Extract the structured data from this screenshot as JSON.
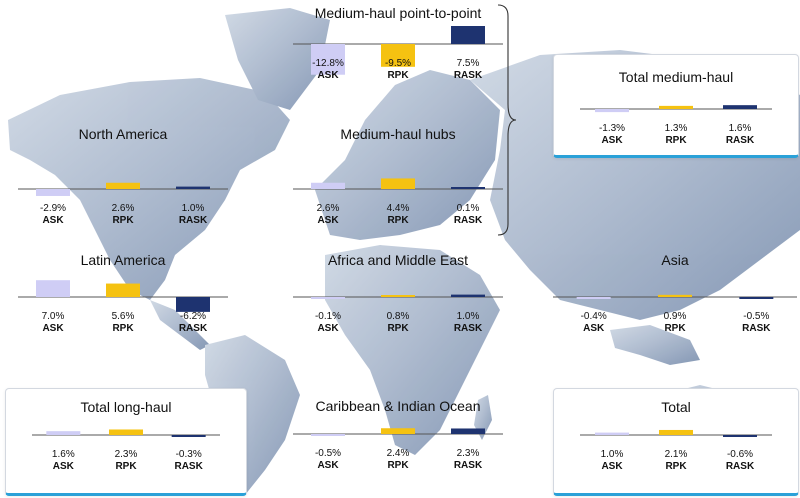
{
  "colors": {
    "ask": "#cfcdf5",
    "rpk": "#f5c211",
    "rask": "#1e3370",
    "axis": "#555555",
    "accent": "#2aa1d8",
    "map_light": "#c3cedd",
    "map_dark": "#8598b5"
  },
  "chart_data": [
    {
      "id": "medium-haul-p2p",
      "type": "bar",
      "title": "Medium-haul point-to-point",
      "categories": [
        "ASK",
        "RPK",
        "RASK"
      ],
      "values": [
        -12.8,
        -9.5,
        7.5
      ],
      "labels": [
        "-12.8%",
        "-9.5%",
        "7.5%"
      ],
      "unit": "%",
      "boxed": false
    },
    {
      "id": "total-medium-haul",
      "type": "bar",
      "title": "Total medium-haul",
      "categories": [
        "ASK",
        "RPK",
        "RASK"
      ],
      "values": [
        -1.3,
        1.3,
        1.6
      ],
      "labels": [
        "-1.3%",
        "1.3%",
        "1.6%"
      ],
      "unit": "%",
      "boxed": true
    },
    {
      "id": "north-america",
      "type": "bar",
      "title": "North America",
      "categories": [
        "ASK",
        "RPK",
        "RASK"
      ],
      "values": [
        -2.9,
        2.6,
        1.0
      ],
      "labels": [
        "-2.9%",
        "2.6%",
        "1.0%"
      ],
      "unit": "%",
      "boxed": false
    },
    {
      "id": "medium-haul-hubs",
      "type": "bar",
      "title": "Medium-haul hubs",
      "categories": [
        "ASK",
        "RPK",
        "RASK"
      ],
      "values": [
        2.6,
        4.4,
        0.1
      ],
      "labels": [
        "2.6%",
        "4.4%",
        "0.1%"
      ],
      "unit": "%",
      "boxed": false
    },
    {
      "id": "latin-america",
      "type": "bar",
      "title": "Latin America",
      "categories": [
        "ASK",
        "RPK",
        "RASK"
      ],
      "values": [
        7.0,
        5.6,
        -6.2
      ],
      "labels": [
        "7.0%",
        "5.6%",
        "-6.2%"
      ],
      "unit": "%",
      "boxed": false
    },
    {
      "id": "africa-middle-east",
      "type": "bar",
      "title": "Africa and Middle East",
      "categories": [
        "ASK",
        "RPK",
        "RASK"
      ],
      "values": [
        -0.1,
        0.8,
        1.0
      ],
      "labels": [
        "-0.1%",
        "0.8%",
        "1.0%"
      ],
      "unit": "%",
      "boxed": false
    },
    {
      "id": "asia",
      "type": "bar",
      "title": "Asia",
      "categories": [
        "ASK",
        "RPK",
        "RASK"
      ],
      "values": [
        -0.4,
        0.9,
        -0.5
      ],
      "labels": [
        "-0.4%",
        "0.9%",
        "-0.5%"
      ],
      "unit": "%",
      "boxed": false
    },
    {
      "id": "total-long-haul",
      "type": "bar",
      "title": "Total long-haul",
      "categories": [
        "ASK",
        "RPK",
        "RASK"
      ],
      "values": [
        1.6,
        2.3,
        -0.3
      ],
      "labels": [
        "1.6%",
        "2.3%",
        "-0.3%"
      ],
      "unit": "%",
      "boxed": true
    },
    {
      "id": "caribbean-indian-ocean",
      "type": "bar",
      "title": "Caribbean & Indian Ocean",
      "categories": [
        "ASK",
        "RPK",
        "RASK"
      ],
      "values": [
        -0.5,
        2.4,
        2.3
      ],
      "labels": [
        "-0.5%",
        "2.4%",
        "2.3%"
      ],
      "unit": "%",
      "boxed": false
    },
    {
      "id": "total",
      "type": "bar",
      "title": "Total",
      "categories": [
        "ASK",
        "RPK",
        "RASK"
      ],
      "values": [
        1.0,
        2.1,
        -0.6
      ],
      "labels": [
        "1.0%",
        "2.1%",
        "-0.6%"
      ],
      "unit": "%",
      "boxed": true
    }
  ]
}
